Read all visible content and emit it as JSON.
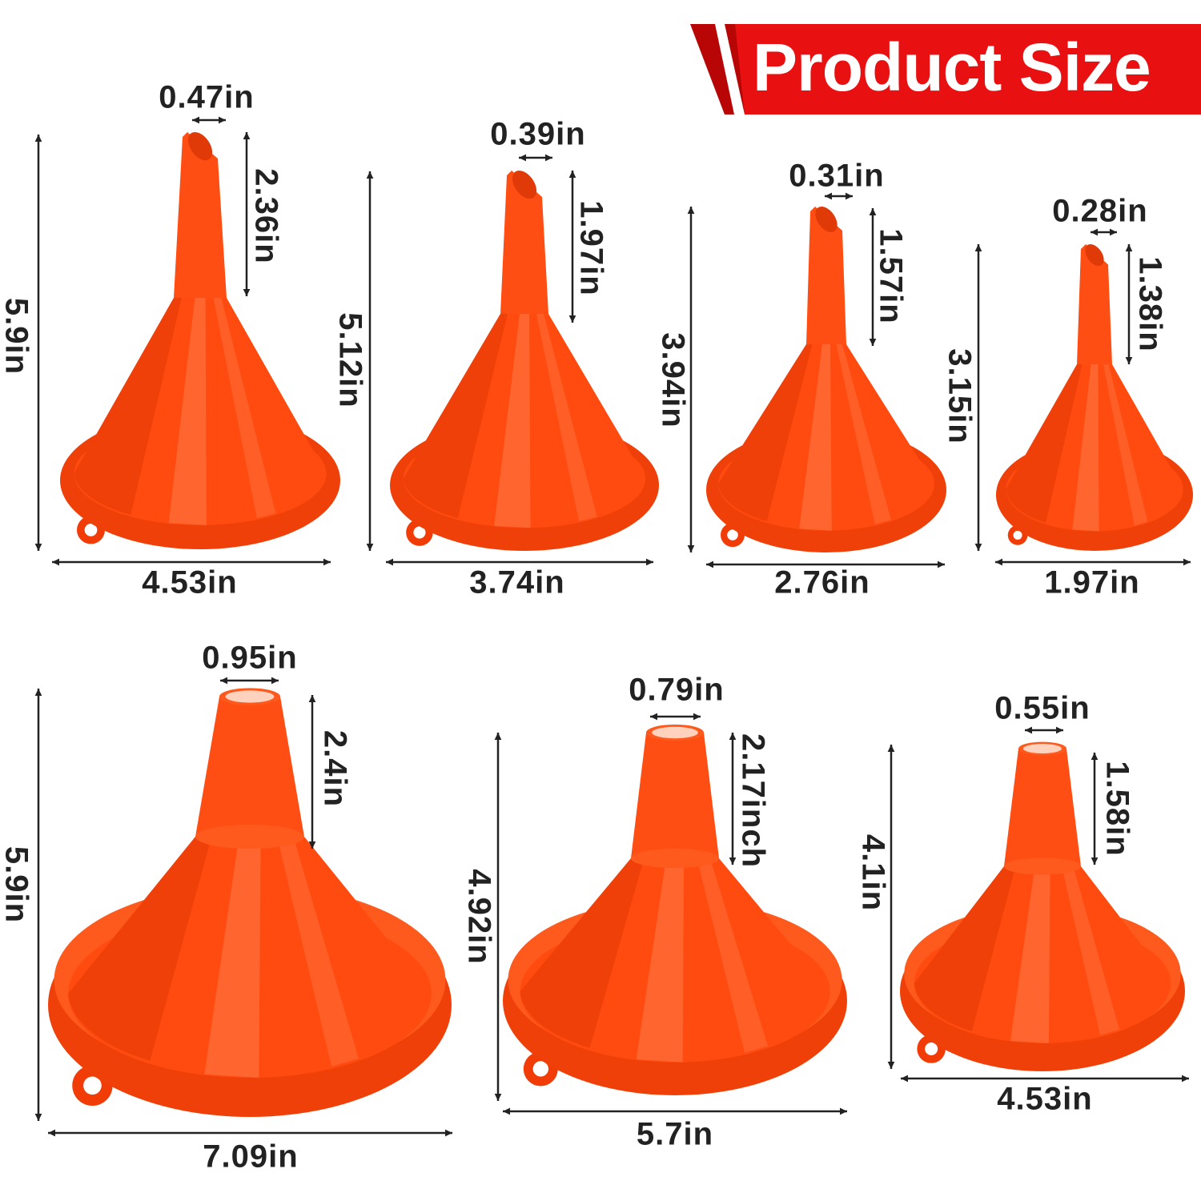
{
  "banner": {
    "title": "Product Size",
    "color": "#e60a0a"
  },
  "funnel_color": "#ff4a10",
  "funnels": [
    {
      "height": "5.9in",
      "width": "4.53in",
      "spout_width": "0.47in",
      "spout_height": "2.36in"
    },
    {
      "height": "5.12in",
      "width": "3.74in",
      "spout_width": "0.39in",
      "spout_height": "1.97in"
    },
    {
      "height": "3.94in",
      "width": "2.76in",
      "spout_width": "0.31in",
      "spout_height": "1.57in"
    },
    {
      "height": "3.15in",
      "width": "1.97in",
      "spout_width": "0.28in",
      "spout_height": "1.38in"
    },
    {
      "height": "5.9in",
      "width": "7.09in",
      "spout_width": "0.95in",
      "spout_height": "2.4in"
    },
    {
      "height": "4.92in",
      "width": "5.7in",
      "spout_width": "0.79in",
      "spout_height": "2.17inch"
    },
    {
      "height": "4.1in",
      "width": "4.53in",
      "spout_width": "0.55in",
      "spout_height": "1.58in"
    }
  ]
}
